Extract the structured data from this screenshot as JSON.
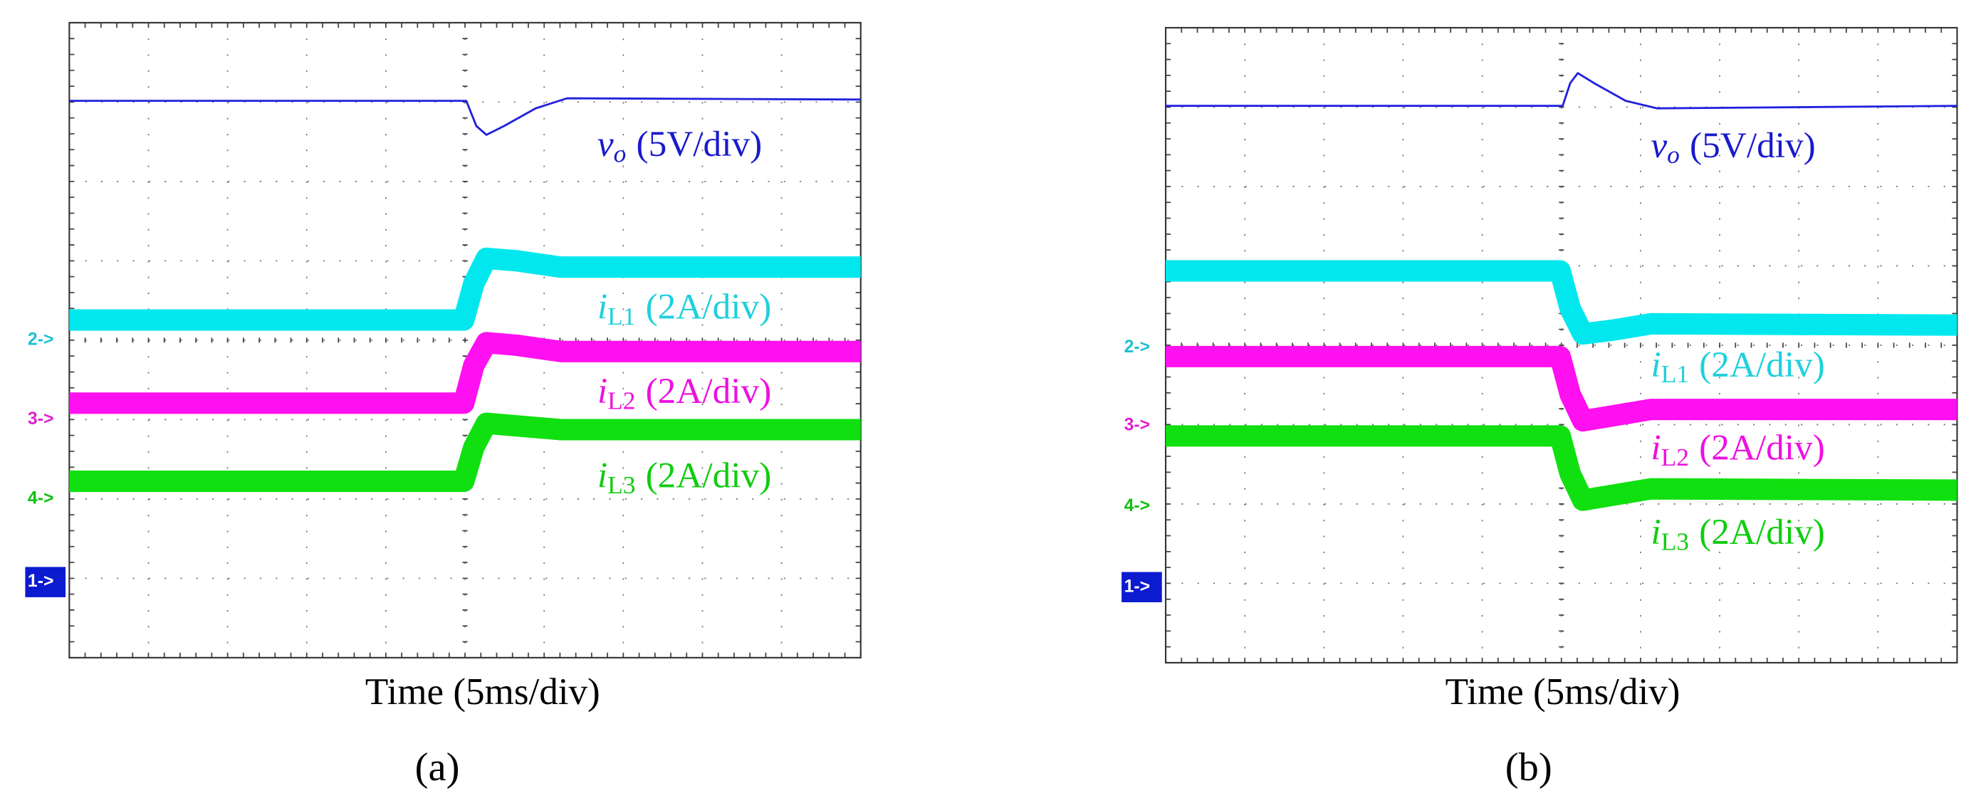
{
  "panels": [
    {
      "traces": [
        {
          "symbol": "v",
          "subscript": "o",
          "scale": "(5V/div)"
        },
        {
          "symbol": "i",
          "subscript": "L1",
          "scale": "(2A/div)"
        },
        {
          "symbol": "i",
          "subscript": "L2",
          "scale": "(2A/div)"
        },
        {
          "symbol": "i",
          "subscript": "L3",
          "scale": "(2A/div)"
        }
      ],
      "channel_markers": [
        "2->",
        "3->",
        "4->",
        "1->"
      ],
      "x_label": "Time (5ms/div)",
      "panel_label": "(a)"
    },
    {
      "traces": [
        {
          "symbol": "v",
          "subscript": "o",
          "scale": "(5V/div)"
        },
        {
          "symbol": "i",
          "subscript": "L1",
          "scale": "(2A/div)"
        },
        {
          "symbol": "i",
          "subscript": "L2",
          "scale": "(2A/div)"
        },
        {
          "symbol": "i",
          "subscript": "L3",
          "scale": "(2A/div)"
        }
      ],
      "channel_markers": [
        "2->",
        "3->",
        "4->",
        "1->"
      ],
      "x_label": "Time (5ms/div)",
      "panel_label": "(b)"
    }
  ]
}
